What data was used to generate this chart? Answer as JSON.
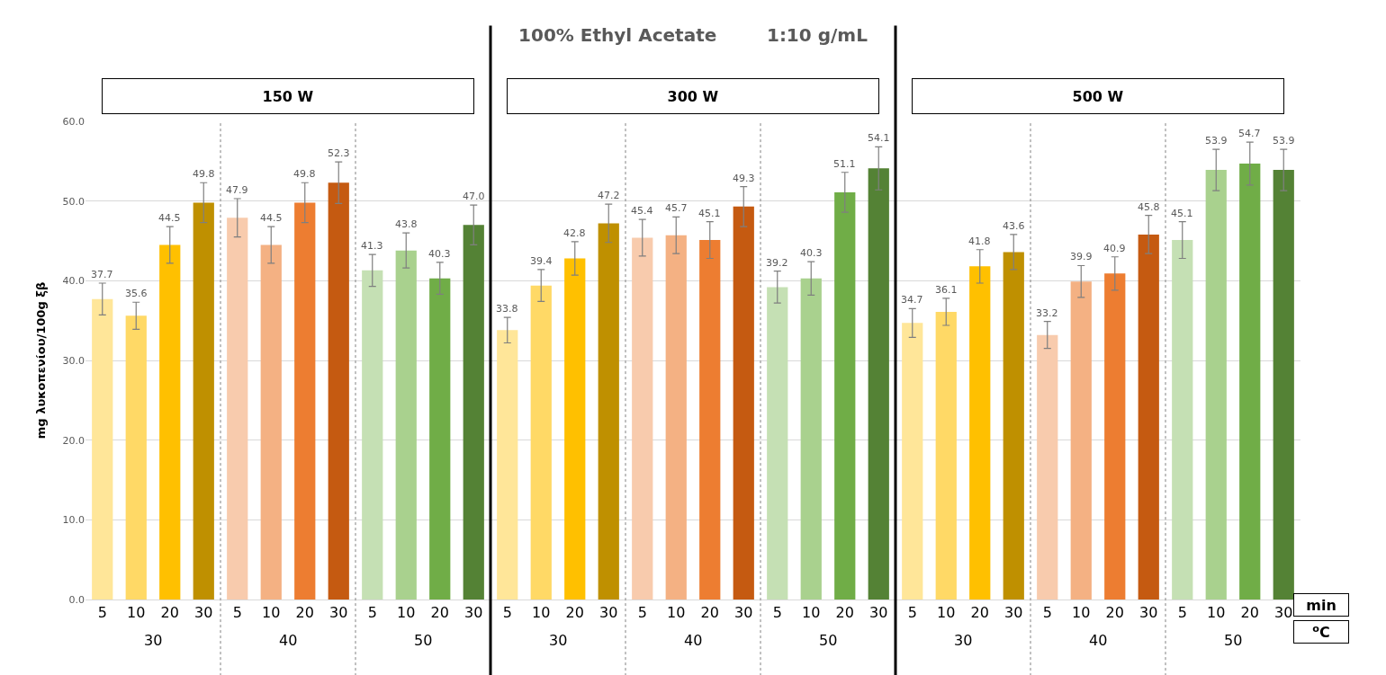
{
  "chart_data": {
    "type": "bar",
    "title": "100% Ethyl Acetate        1:10 g/mL",
    "ylabel": "mg λυκοπενίου/100g ξβ",
    "categories": [
      "5",
      "10",
      "20",
      "30",
      "5",
      "10",
      "20",
      "30",
      "5",
      "10",
      "20",
      "30",
      "5",
      "10",
      "20",
      "30",
      "5",
      "10",
      "20",
      "30",
      "5",
      "10",
      "20",
      "30",
      "5",
      "10",
      "20",
      "30",
      "5",
      "10",
      "20",
      "30",
      "5",
      "10",
      "20",
      "30"
    ],
    "values": [
      37.7,
      35.6,
      44.5,
      49.8,
      47.9,
      44.5,
      49.8,
      52.3,
      41.3,
      43.8,
      40.3,
      47.0,
      33.8,
      39.4,
      42.8,
      47.2,
      45.4,
      45.7,
      45.1,
      49.3,
      39.2,
      40.3,
      51.1,
      54.1,
      34.7,
      36.1,
      41.8,
      43.6,
      33.2,
      39.9,
      40.9,
      45.8,
      45.1,
      53.9,
      54.7,
      53.9
    ],
    "value_labels": [
      "37.7",
      "35.6",
      "44.5",
      "49.8",
      "47.9",
      "44.5",
      "49.8",
      "52.3",
      "41.3",
      "43.8",
      "40.3",
      "47.0",
      "33.8",
      "39.4",
      "42.8",
      "47.2",
      "45.4",
      "45.7",
      "45.1",
      "49.3",
      "39.2",
      "40.3",
      "51.1",
      "54.1",
      "34.7",
      "36.1",
      "41.8",
      "43.6",
      "33.2",
      "39.9",
      "40.9",
      "45.8",
      "45.1",
      "53.9",
      "54.7",
      "53.9"
    ],
    "errors": [
      2.0,
      1.7,
      2.3,
      2.5,
      2.4,
      2.3,
      2.5,
      2.6,
      2.0,
      2.2,
      2.0,
      2.5,
      1.6,
      2.0,
      2.1,
      2.4,
      2.3,
      2.3,
      2.3,
      2.5,
      2.0,
      2.1,
      2.5,
      2.7,
      1.8,
      1.7,
      2.1,
      2.2,
      1.7,
      2.0,
      2.1,
      2.4,
      2.3,
      2.6,
      2.7,
      2.6
    ],
    "colors": [
      "#ffe699",
      "#ffd966",
      "#ffc000",
      "#bf9000",
      "#f8cbad",
      "#f4b183",
      "#ed7d31",
      "#c55a11",
      "#c5e0b4",
      "#a9d18e",
      "#70ad47",
      "#548235",
      "#ffe699",
      "#ffd966",
      "#ffc000",
      "#bf9000",
      "#f8cbad",
      "#f4b183",
      "#ed7d31",
      "#c55a11",
      "#c5e0b4",
      "#a9d18e",
      "#70ad47",
      "#548235",
      "#ffe699",
      "#ffd966",
      "#ffc000",
      "#bf9000",
      "#f8cbad",
      "#f4b183",
      "#ed7d31",
      "#c55a11",
      "#c5e0b4",
      "#a9d18e",
      "#70ad47",
      "#548235"
    ],
    "ylim": [
      0,
      60
    ],
    "yticks": [
      {
        "value": 0,
        "label": "0.0"
      },
      {
        "value": 10,
        "label": "10.0"
      },
      {
        "value": 20,
        "label": "20.0"
      },
      {
        "value": 30,
        "label": "30.0"
      },
      {
        "value": 40,
        "label": "40.0"
      },
      {
        "value": 50,
        "label": "50.0"
      },
      {
        "value": 60,
        "label": "60.0"
      }
    ],
    "grid": "y",
    "legend": false,
    "annotations": [
      "150 W",
      "300 W",
      "500 W",
      "30",
      "40",
      "50",
      "30",
      "40",
      "50",
      "30",
      "40",
      "50",
      "min",
      "$^{o}$C"
    ]
  }
}
